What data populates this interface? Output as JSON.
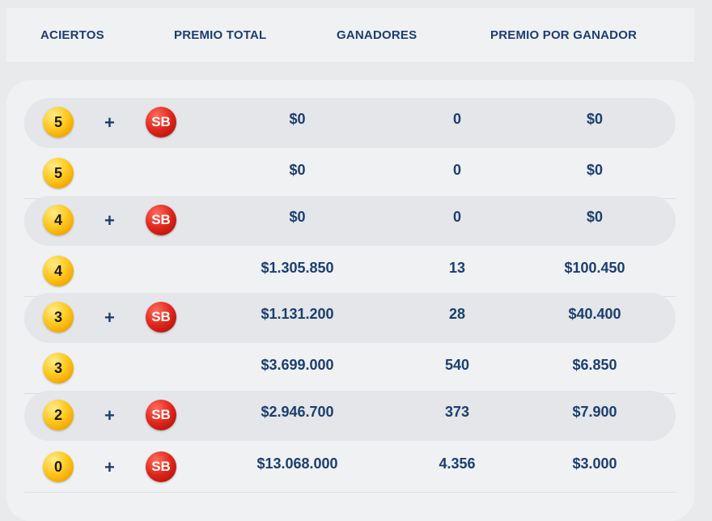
{
  "header": {
    "aciertos": "ACIERTOS",
    "premio_total": "PREMIO TOTAL",
    "ganadores": "GANADORES",
    "premio_por_ganador": "PREMIO POR GANADOR"
  },
  "plus_symbol": "+",
  "sb_label": "SB",
  "rows": [
    {
      "aciertos": "5",
      "sb": true,
      "premio_total": "$0",
      "ganadores": "0",
      "premio_por_ganador": "$0"
    },
    {
      "aciertos": "5",
      "sb": false,
      "premio_total": "$0",
      "ganadores": "0",
      "premio_por_ganador": "$0"
    },
    {
      "aciertos": "4",
      "sb": true,
      "premio_total": "$0",
      "ganadores": "0",
      "premio_por_ganador": "$0"
    },
    {
      "aciertos": "4",
      "sb": false,
      "premio_total": "$1.305.850",
      "ganadores": "13",
      "premio_por_ganador": "$100.450"
    },
    {
      "aciertos": "3",
      "sb": true,
      "premio_total": "$1.131.200",
      "ganadores": "28",
      "premio_por_ganador": "$40.400"
    },
    {
      "aciertos": "3",
      "sb": false,
      "premio_total": "$3.699.000",
      "ganadores": "540",
      "premio_por_ganador": "$6.850"
    },
    {
      "aciertos": "2",
      "sb": true,
      "premio_total": "$2.946.700",
      "ganadores": "373",
      "premio_por_ganador": "$7.900"
    },
    {
      "aciertos": "0",
      "sb": true,
      "premio_total": "$13.068.000",
      "ganadores": "4.356",
      "premio_por_ganador": "$3.000"
    }
  ],
  "colors": {
    "text": "#1b3e6e",
    "ball_yellow": "#ffc91f",
    "ball_red": "#e0261b",
    "row_shaded": "#e4e6e9",
    "panel": "#f0f1f3"
  }
}
